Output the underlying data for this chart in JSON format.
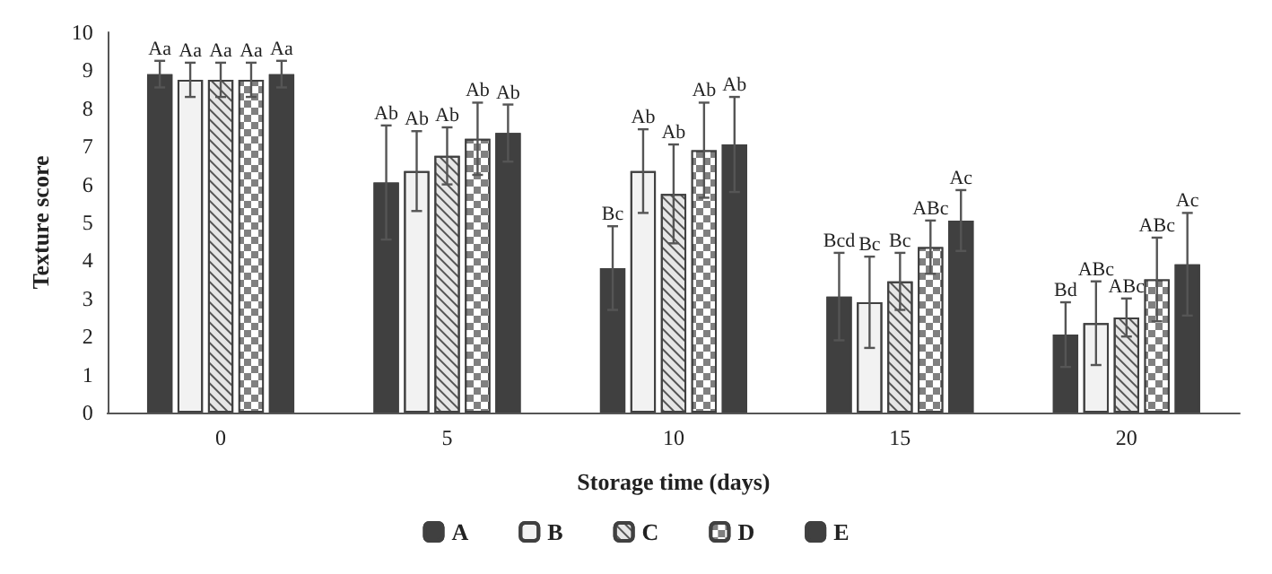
{
  "chart_data": {
    "type": "bar",
    "xlabel": "Storage time (days)",
    "ylabel": "Texture score",
    "categories": [
      "0",
      "5",
      "10",
      "15",
      "20"
    ],
    "ylim": [
      0,
      10
    ],
    "yticks": [
      0,
      1,
      2,
      3,
      4,
      5,
      6,
      7,
      8,
      9,
      10
    ],
    "grid": false,
    "legend": "bottom",
    "series": [
      {
        "name": "A",
        "color": "#404040",
        "values": [
          8.9,
          6.05,
          3.8,
          3.05,
          2.05
        ],
        "errors": [
          0.35,
          1.5,
          1.1,
          1.15,
          0.85
        ],
        "value_labels": [
          "Aa",
          "Ab",
          "Bc",
          "Bcd",
          "Bd"
        ]
      },
      {
        "name": "B",
        "color": "#f2f2f2",
        "values": [
          8.75,
          6.35,
          6.35,
          2.9,
          2.35
        ],
        "errors": [
          0.45,
          1.05,
          1.1,
          1.2,
          1.1
        ],
        "value_labels": [
          "Aa",
          "Ab",
          "Ab",
          "Bc",
          "ABc"
        ]
      },
      {
        "name": "C",
        "color": "#e6e6e6",
        "values": [
          8.75,
          6.75,
          5.75,
          3.45,
          2.5
        ],
        "errors": [
          0.45,
          0.75,
          1.3,
          0.75,
          0.5
        ],
        "value_labels": [
          "Aa",
          "Ab",
          "Ab",
          "Bc",
          "ABc"
        ]
      },
      {
        "name": "D",
        "color": "#808080",
        "values": [
          8.75,
          7.2,
          6.9,
          4.35,
          3.5
        ],
        "errors": [
          0.45,
          0.95,
          1.25,
          0.7,
          1.1
        ],
        "value_labels": [
          "Aa",
          "Ab",
          "Ab",
          "ABc",
          "ABc"
        ]
      },
      {
        "name": "E",
        "color": "#404040",
        "values": [
          8.9,
          7.35,
          7.05,
          5.05,
          3.9
        ],
        "errors": [
          0.35,
          0.75,
          1.25,
          0.8,
          1.35
        ],
        "value_labels": [
          "Aa",
          "Ab",
          "Ab",
          "Ac",
          "Ac"
        ]
      }
    ]
  }
}
